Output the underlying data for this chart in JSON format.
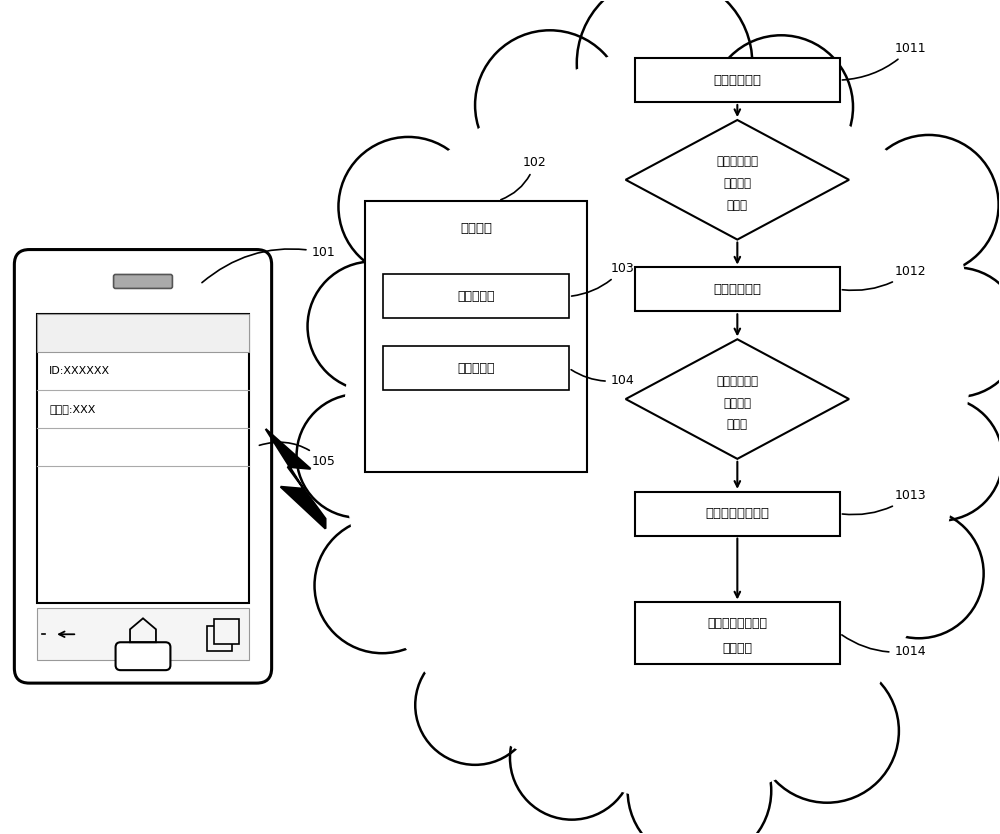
{
  "bg_color": "#ffffff",
  "line_color": "#000000",
  "fig_width": 10.0,
  "fig_height": 8.34,
  "phone_id_text": "ID:XXXXXX",
  "phone_user_text": "用户名:XXX",
  "warehouse_text": "数据仓库",
  "src1_text": "第一数据源",
  "src2_text": "第二数据源",
  "flow_box1": "第一数据对象",
  "flow_box2": "第二数据对象",
  "flow_box3": "第一界面数据对象",
  "flow_box4_line1": "更新后的第一界面",
  "flow_box4_line2": "数据对象",
  "flow_d1_line1": "第一数据对象",
  "flow_d1_line2": "是否发生",
  "flow_d1_line3": "变化？",
  "flow_d2_line1": "第二数据对象",
  "flow_d2_line2": "是否发生",
  "flow_d2_line3": "变化？",
  "label_101": "101",
  "label_102": "102",
  "label_103": "103",
  "label_104": "104",
  "label_105": "105",
  "label_1011": "1011",
  "label_1012": "1012",
  "label_1013": "1013",
  "label_1014": "1014"
}
